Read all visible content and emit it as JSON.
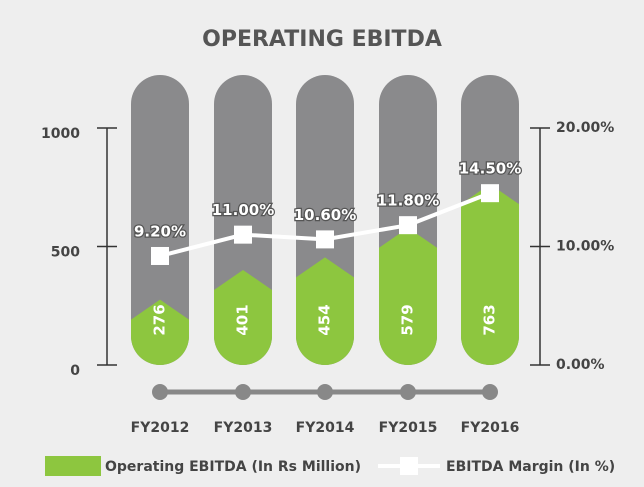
{
  "chart_data": {
    "type": "bar",
    "title": "OPERATING EBITDA",
    "categories": [
      "FY2012",
      "FY2013",
      "FY2014",
      "FY2015",
      "FY2016"
    ],
    "series": [
      {
        "name": "Operating EBITDA (In Rs Million)",
        "color": "#8dc63f",
        "values": [
          276,
          401,
          454,
          579,
          763
        ]
      },
      {
        "name": "EBITDA Margin (In %)",
        "color": "#ffffff",
        "type": "line",
        "axis": "y2",
        "values": [
          9.2,
          11.0,
          10.6,
          11.8,
          14.5
        ],
        "value_labels": [
          "9.20%",
          "11.00%",
          "10.60%",
          "11.80%",
          "14.50%"
        ]
      }
    ],
    "ylim": [
      0,
      1000
    ],
    "yticks": [
      0,
      500,
      1000
    ],
    "y2lim": [
      0,
      20
    ],
    "y2ticks": [
      {
        "value": 0,
        "label": "0.00%"
      },
      {
        "value": 10,
        "label": "10.00%"
      },
      {
        "value": 20,
        "label": "20.00%"
      }
    ],
    "legend": "bottom"
  }
}
